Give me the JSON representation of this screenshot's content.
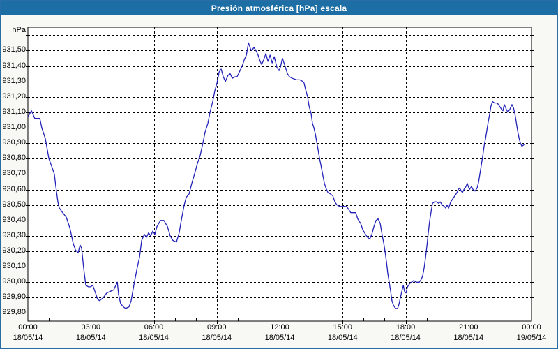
{
  "window": {
    "title": "Presión atmosférica [hPa] escala"
  },
  "colors": {
    "titlebar_bg": "#1c6ea4",
    "window_border": "#2a6da5",
    "window_bg": "#f8f8f4",
    "plot_bg": "#ffffff",
    "grid": "#000000",
    "line": "#2222b8",
    "text": "#000000",
    "title_text": "#ffffff"
  },
  "chart_data": {
    "type": "line",
    "title": "Presión atmosférica [hPa] escala",
    "unit_label": "hPa",
    "grid": "dotted",
    "legend": "none",
    "y_axis": {
      "ylim": [
        929.748,
        931.651
      ],
      "grid_values_top": 931.6,
      "grid_values_bottom": 929.8,
      "grid_step": 0.1,
      "ticks": [
        {
          "label": "931,50",
          "value": 931.5
        },
        {
          "label": "931,40",
          "value": 931.4
        },
        {
          "label": "931,30",
          "value": 931.3
        },
        {
          "label": "931,20",
          "value": 931.2
        },
        {
          "label": "931,10",
          "value": 931.1
        },
        {
          "label": "931,00",
          "value": 931.0
        },
        {
          "label": "930,90",
          "value": 930.9
        },
        {
          "label": "930,80",
          "value": 930.8
        },
        {
          "label": "930,70",
          "value": 930.7
        },
        {
          "label": "930,60",
          "value": 930.6
        },
        {
          "label": "930,50",
          "value": 930.5
        },
        {
          "label": "930,40",
          "value": 930.4
        },
        {
          "label": "930,30",
          "value": 930.3
        },
        {
          "label": "930,20",
          "value": 930.2
        },
        {
          "label": "930,10",
          "value": 930.1
        },
        {
          "label": "930,00",
          "value": 930.0
        },
        {
          "label": "929,90",
          "value": 929.9
        },
        {
          "label": "929,80",
          "value": 929.8
        }
      ]
    },
    "x_axis": {
      "xlim_hours": [
        0,
        24
      ],
      "major_step_hours": 3,
      "minor_step_hours": 1,
      "ticks": [
        {
          "hour": 0,
          "time": "00:00",
          "date": "18/05/14"
        },
        {
          "hour": 3,
          "time": "03:00",
          "date": "18/05/14"
        },
        {
          "hour": 6,
          "time": "06:00",
          "date": "18/05/14"
        },
        {
          "hour": 9,
          "time": "09:00",
          "date": "18/05/14"
        },
        {
          "hour": 12,
          "time": "12:00",
          "date": "18/05/14"
        },
        {
          "hour": 15,
          "time": "15:00",
          "date": "18/05/14"
        },
        {
          "hour": 18,
          "time": "18:00",
          "date": "18/05/14"
        },
        {
          "hour": 21,
          "time": "21:00",
          "date": "18/05/14"
        },
        {
          "hour": 24,
          "time": "00:00",
          "date": "19/05/14"
        }
      ]
    },
    "series": [
      {
        "name": "presion-atmosferica",
        "color": "#2222b8",
        "points": [
          [
            0.0,
            931.07
          ],
          [
            0.17,
            931.11
          ],
          [
            0.33,
            931.06
          ],
          [
            0.57,
            931.06
          ],
          [
            0.66,
            931.0
          ],
          [
            0.83,
            930.93
          ],
          [
            1.0,
            930.8
          ],
          [
            1.16,
            930.74
          ],
          [
            1.26,
            930.7
          ],
          [
            1.33,
            930.62
          ],
          [
            1.43,
            930.52
          ],
          [
            1.5,
            930.48
          ],
          [
            1.66,
            930.45
          ],
          [
            1.83,
            930.42
          ],
          [
            2.0,
            930.35
          ],
          [
            2.16,
            930.25
          ],
          [
            2.26,
            930.21
          ],
          [
            2.39,
            930.19
          ],
          [
            2.49,
            930.24
          ],
          [
            2.56,
            930.22
          ],
          [
            2.66,
            930.09
          ],
          [
            2.76,
            929.98
          ],
          [
            2.89,
            929.97
          ],
          [
            2.99,
            929.97
          ],
          [
            3.09,
            929.98
          ],
          [
            3.22,
            929.93
          ],
          [
            3.32,
            929.89
          ],
          [
            3.42,
            929.88
          ],
          [
            3.59,
            929.9
          ],
          [
            3.76,
            929.93
          ],
          [
            3.92,
            929.94
          ],
          [
            4.09,
            929.95
          ],
          [
            4.26,
            930.0
          ],
          [
            4.32,
            929.92
          ],
          [
            4.42,
            929.86
          ],
          [
            4.55,
            929.84
          ],
          [
            4.65,
            929.83
          ],
          [
            4.82,
            929.84
          ],
          [
            4.92,
            929.88
          ],
          [
            5.09,
            930.01
          ],
          [
            5.22,
            930.1
          ],
          [
            5.32,
            930.16
          ],
          [
            5.42,
            930.27
          ],
          [
            5.55,
            930.31
          ],
          [
            5.65,
            930.29
          ],
          [
            5.75,
            930.32
          ],
          [
            5.85,
            930.3
          ],
          [
            5.95,
            930.33
          ],
          [
            6.05,
            930.31
          ],
          [
            6.15,
            930.36
          ],
          [
            6.32,
            930.4
          ],
          [
            6.48,
            930.4
          ],
          [
            6.65,
            930.36
          ],
          [
            6.78,
            930.3
          ],
          [
            6.91,
            930.27
          ],
          [
            7.08,
            930.26
          ],
          [
            7.21,
            930.32
          ],
          [
            7.31,
            930.4
          ],
          [
            7.45,
            930.5
          ],
          [
            7.55,
            930.55
          ],
          [
            7.68,
            930.57
          ],
          [
            7.81,
            930.64
          ],
          [
            7.94,
            930.7
          ],
          [
            8.08,
            930.77
          ],
          [
            8.21,
            930.82
          ],
          [
            8.34,
            930.9
          ],
          [
            8.44,
            930.97
          ],
          [
            8.58,
            931.03
          ],
          [
            8.68,
            931.1
          ],
          [
            8.81,
            931.17
          ],
          [
            8.91,
            931.24
          ],
          [
            9.01,
            931.29
          ],
          [
            9.11,
            931.36
          ],
          [
            9.21,
            931.38
          ],
          [
            9.31,
            931.33
          ],
          [
            9.41,
            931.3
          ],
          [
            9.54,
            931.34
          ],
          [
            9.64,
            931.35
          ],
          [
            9.74,
            931.32
          ],
          [
            9.87,
            931.33
          ],
          [
            9.97,
            931.33
          ],
          [
            10.11,
            931.37
          ],
          [
            10.21,
            931.4
          ],
          [
            10.31,
            931.44
          ],
          [
            10.41,
            931.47
          ],
          [
            10.51,
            931.55
          ],
          [
            10.61,
            931.51
          ],
          [
            10.67,
            931.5
          ],
          [
            10.77,
            931.52
          ],
          [
            10.87,
            931.5
          ],
          [
            10.97,
            931.47
          ],
          [
            11.07,
            931.43
          ],
          [
            11.14,
            931.41
          ],
          [
            11.24,
            931.44
          ],
          [
            11.34,
            931.48
          ],
          [
            11.44,
            931.43
          ],
          [
            11.54,
            931.47
          ],
          [
            11.64,
            931.42
          ],
          [
            11.74,
            931.46
          ],
          [
            11.87,
            931.39
          ],
          [
            11.97,
            931.37
          ],
          [
            12.03,
            931.39
          ],
          [
            12.13,
            931.45
          ],
          [
            12.23,
            931.41
          ],
          [
            12.37,
            931.35
          ],
          [
            12.47,
            931.33
          ],
          [
            12.6,
            931.32
          ],
          [
            12.8,
            931.31
          ],
          [
            12.96,
            931.31
          ],
          [
            13.1,
            931.3
          ],
          [
            13.16,
            931.29
          ],
          [
            13.23,
            931.25
          ],
          [
            13.33,
            931.2
          ],
          [
            13.4,
            931.14
          ],
          [
            13.5,
            931.09
          ],
          [
            13.56,
            931.03
          ],
          [
            13.63,
            931.0
          ],
          [
            13.7,
            930.96
          ],
          [
            13.8,
            930.88
          ],
          [
            13.9,
            930.8
          ],
          [
            13.96,
            930.76
          ],
          [
            14.03,
            930.71
          ],
          [
            14.13,
            930.64
          ],
          [
            14.2,
            930.61
          ],
          [
            14.3,
            930.58
          ],
          [
            14.43,
            930.57
          ],
          [
            14.53,
            930.56
          ],
          [
            14.63,
            930.52
          ],
          [
            14.73,
            930.5
          ],
          [
            14.86,
            930.49
          ],
          [
            15.19,
            930.49
          ],
          [
            15.29,
            930.47
          ],
          [
            15.39,
            930.45
          ],
          [
            15.62,
            930.45
          ],
          [
            15.72,
            930.41
          ],
          [
            15.86,
            930.38
          ],
          [
            15.96,
            930.34
          ],
          [
            16.09,
            930.31
          ],
          [
            16.19,
            930.29
          ],
          [
            16.29,
            930.28
          ],
          [
            16.39,
            930.31
          ],
          [
            16.49,
            930.36
          ],
          [
            16.59,
            930.4
          ],
          [
            16.69,
            930.41
          ],
          [
            16.79,
            930.38
          ],
          [
            16.89,
            930.3
          ],
          [
            16.95,
            930.26
          ],
          [
            17.02,
            930.2
          ],
          [
            17.09,
            930.13
          ],
          [
            17.15,
            930.06
          ],
          [
            17.22,
            930.0
          ],
          [
            17.29,
            929.94
          ],
          [
            17.35,
            929.88
          ],
          [
            17.42,
            929.85
          ],
          [
            17.52,
            929.83
          ],
          [
            17.62,
            929.83
          ],
          [
            17.69,
            929.86
          ],
          [
            17.75,
            929.9
          ],
          [
            17.82,
            929.94
          ],
          [
            17.89,
            929.98
          ],
          [
            17.95,
            929.94
          ],
          [
            18.02,
            929.93
          ],
          [
            18.09,
            929.97
          ],
          [
            18.19,
            929.99
          ],
          [
            18.28,
            930.0
          ],
          [
            18.38,
            930.01
          ],
          [
            18.52,
            930.0
          ],
          [
            18.65,
            930.0
          ],
          [
            18.75,
            930.02
          ],
          [
            18.81,
            930.04
          ],
          [
            18.88,
            930.09
          ],
          [
            18.95,
            930.16
          ],
          [
            19.02,
            930.24
          ],
          [
            19.08,
            930.32
          ],
          [
            19.15,
            930.4
          ],
          [
            19.22,
            930.46
          ],
          [
            19.28,
            930.51
          ],
          [
            19.38,
            930.52
          ],
          [
            19.48,
            930.52
          ],
          [
            19.58,
            930.51
          ],
          [
            19.65,
            930.52
          ],
          [
            19.75,
            930.5
          ],
          [
            19.85,
            930.49
          ],
          [
            19.91,
            930.48
          ],
          [
            19.98,
            930.5
          ],
          [
            20.05,
            930.48
          ],
          [
            20.15,
            930.52
          ],
          [
            20.25,
            930.54
          ],
          [
            20.35,
            930.56
          ],
          [
            20.45,
            930.58
          ],
          [
            20.51,
            930.6
          ],
          [
            20.58,
            930.61
          ],
          [
            20.65,
            930.59
          ],
          [
            20.71,
            930.58
          ],
          [
            20.78,
            930.6
          ],
          [
            20.88,
            930.62
          ],
          [
            20.94,
            930.64
          ],
          [
            21.04,
            930.6
          ],
          [
            21.14,
            930.62
          ],
          [
            21.21,
            930.6
          ],
          [
            21.31,
            930.59
          ],
          [
            21.41,
            930.61
          ],
          [
            21.48,
            930.65
          ],
          [
            21.54,
            930.7
          ],
          [
            21.61,
            930.76
          ],
          [
            21.68,
            930.82
          ],
          [
            21.74,
            930.88
          ],
          [
            21.81,
            930.93
          ],
          [
            21.87,
            930.98
          ],
          [
            21.94,
            931.04
          ],
          [
            22.01,
            931.09
          ],
          [
            22.07,
            931.14
          ],
          [
            22.14,
            931.17
          ],
          [
            22.24,
            931.16
          ],
          [
            22.37,
            931.16
          ],
          [
            22.47,
            931.14
          ],
          [
            22.57,
            931.12
          ],
          [
            22.64,
            931.11
          ],
          [
            22.7,
            931.15
          ],
          [
            22.8,
            931.12
          ],
          [
            22.87,
            931.1
          ],
          [
            22.97,
            931.12
          ],
          [
            23.07,
            931.15
          ],
          [
            23.14,
            931.13
          ],
          [
            23.21,
            931.09
          ],
          [
            23.27,
            931.04
          ],
          [
            23.34,
            930.98
          ],
          [
            23.41,
            930.93
          ],
          [
            23.47,
            930.9
          ],
          [
            23.54,
            930.88
          ],
          [
            23.64,
            930.89
          ]
        ]
      }
    ]
  }
}
